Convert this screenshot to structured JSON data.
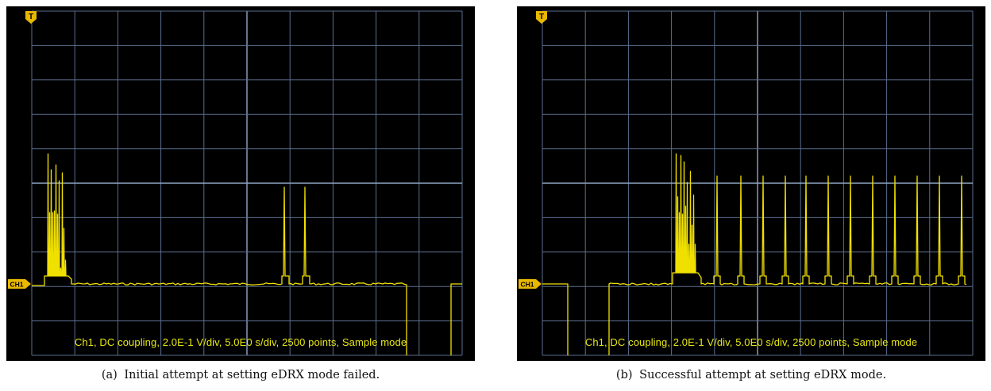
{
  "colors": {
    "background": "#000000",
    "grid": "#5a6e8e",
    "grid_center": "#8fa5c6",
    "trace": "#f0e000",
    "marker": "#e8b800",
    "text": "#e8e816"
  },
  "panels": [
    {
      "id": "a",
      "caption_label": "(a)",
      "caption_text": "Initial attempt at setting eDRX mode failed.",
      "channel_marker": "CH1",
      "trigger_marker": "T",
      "settings_text": "Ch1, DC coupling, 2.0E-1 V/div, 5.0E0 s/div, 2500 points, Sample mode",
      "trace_description": "burst of peaks at start, two isolated spikes near middle, then signal drops"
    },
    {
      "id": "b",
      "caption_label": "(b)",
      "caption_text": "Successful attempt at setting eDRX mode.",
      "channel_marker": "CH1",
      "trigger_marker": "T",
      "settings_text": "Ch1, DC coupling, 2.0E-1 V/div, 5.0E0 s/div, 2500 points, Sample mode",
      "trace_description": "dropout at start, burst of peaks, then periodic spikes"
    }
  ]
}
